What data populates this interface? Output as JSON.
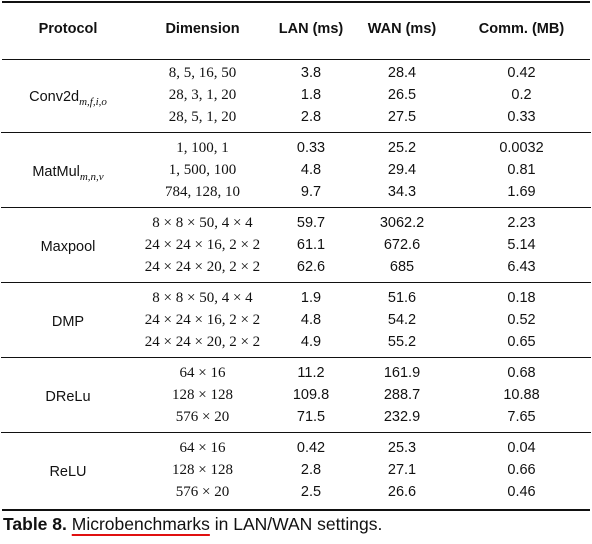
{
  "headers": {
    "protocol": "Protocol",
    "dimension": "Dimension",
    "lan": "LAN (ms)",
    "wan": "WAN (ms)",
    "comm": "Comm. (MB)"
  },
  "groups": [
    {
      "name": "Conv2d",
      "subscript": "m,f,i,o",
      "rows": [
        {
          "dim": "8, 5, 16, 50",
          "lan": "3.8",
          "wan": "28.4",
          "comm": "0.42"
        },
        {
          "dim": "28, 3, 1, 20",
          "lan": "1.8",
          "wan": "26.5",
          "comm": "0.2"
        },
        {
          "dim": "28, 5, 1, 20",
          "lan": "2.8",
          "wan": "27.5",
          "comm": "0.33"
        }
      ]
    },
    {
      "name": "MatMul",
      "subscript": "m,n,v",
      "rows": [
        {
          "dim": "1, 100, 1",
          "lan": "0.33",
          "wan": "25.2",
          "comm": "0.0032"
        },
        {
          "dim": "1, 500, 100",
          "lan": "4.8",
          "wan": "29.4",
          "comm": "0.81"
        },
        {
          "dim": "784, 128, 10",
          "lan": "9.7",
          "wan": "34.3",
          "comm": "1.69"
        }
      ]
    },
    {
      "name": "Maxpool",
      "subscript": "",
      "rows": [
        {
          "dim": "8 × 8 × 50, 4 × 4",
          "lan": "59.7",
          "wan": "3062.2",
          "comm": "2.23"
        },
        {
          "dim": "24 × 24 × 16, 2 × 2",
          "lan": "61.1",
          "wan": "672.6",
          "comm": "5.14"
        },
        {
          "dim": "24 × 24 × 20, 2 × 2",
          "lan": "62.6",
          "wan": "685",
          "comm": "6.43"
        }
      ]
    },
    {
      "name": "DMP",
      "subscript": "",
      "rows": [
        {
          "dim": "8 × 8 × 50, 4 × 4",
          "lan": "1.9",
          "wan": "51.6",
          "comm": "0.18"
        },
        {
          "dim": "24 × 24 × 16, 2 × 2",
          "lan": "4.8",
          "wan": "54.2",
          "comm": "0.52"
        },
        {
          "dim": "24 × 24 × 20, 2 × 2",
          "lan": "4.9",
          "wan": "55.2",
          "comm": "0.65"
        }
      ]
    },
    {
      "name": "DReLu",
      "subscript": "",
      "rows": [
        {
          "dim": "64 × 16",
          "lan": "11.2",
          "wan": "161.9",
          "comm": "0.68"
        },
        {
          "dim": "128 × 128",
          "lan": "109.8",
          "wan": "288.7",
          "comm": "10.88"
        },
        {
          "dim": "576 × 20",
          "lan": "71.5",
          "wan": "232.9",
          "comm": "7.65"
        }
      ]
    },
    {
      "name": "ReLU",
      "subscript": "",
      "rows": [
        {
          "dim": "64 × 16",
          "lan": "0.42",
          "wan": "25.3",
          "comm": "0.04"
        },
        {
          "dim": "128 × 128",
          "lan": "2.8",
          "wan": "27.1",
          "comm": "0.66"
        },
        {
          "dim": "576 × 20",
          "lan": "2.5",
          "wan": "26.6",
          "comm": "0.46"
        }
      ]
    }
  ],
  "caption": {
    "label": "Table 8.",
    "marked_word": "Microbenchmarks",
    "rest": "in LAN/WAN settings."
  }
}
